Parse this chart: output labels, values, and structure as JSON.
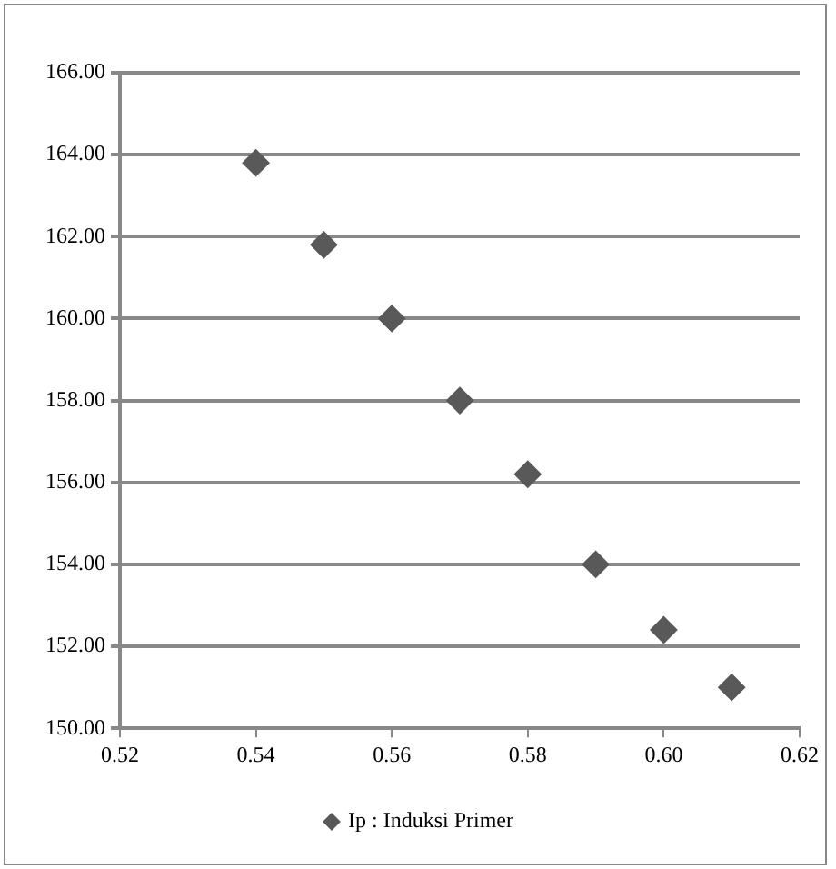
{
  "chart_data": {
    "type": "scatter",
    "x": [
      0.54,
      0.55,
      0.56,
      0.57,
      0.58,
      0.59,
      0.6,
      0.61
    ],
    "series": [
      {
        "name": "Ip : Induksi Primer",
        "color": "#595959",
        "values": [
          163.8,
          161.8,
          160.0,
          158.0,
          156.2,
          154.0,
          152.4,
          151.0
        ]
      }
    ],
    "xlim": [
      0.52,
      0.62
    ],
    "xticks": [
      {
        "value": 0.52,
        "label": "0.52"
      },
      {
        "value": 0.54,
        "label": "0.54"
      },
      {
        "value": 0.56,
        "label": "0.56"
      },
      {
        "value": 0.58,
        "label": "0.58"
      },
      {
        "value": 0.6,
        "label": "0.60"
      },
      {
        "value": 0.62,
        "label": "0.62"
      }
    ],
    "ylim": [
      150,
      166
    ],
    "yticks": [
      {
        "value": 150,
        "label": "150.00"
      },
      {
        "value": 152,
        "label": "152.00"
      },
      {
        "value": 154,
        "label": "154.00"
      },
      {
        "value": 156,
        "label": "156.00"
      },
      {
        "value": 158,
        "label": "158.00"
      },
      {
        "value": 160,
        "label": "160.00"
      },
      {
        "value": 162,
        "label": "162.00"
      },
      {
        "value": 164,
        "label": "164.00"
      },
      {
        "value": 166,
        "label": "166.00"
      }
    ],
    "grid": "y",
    "legend": "bottom",
    "marker": "diamond"
  }
}
